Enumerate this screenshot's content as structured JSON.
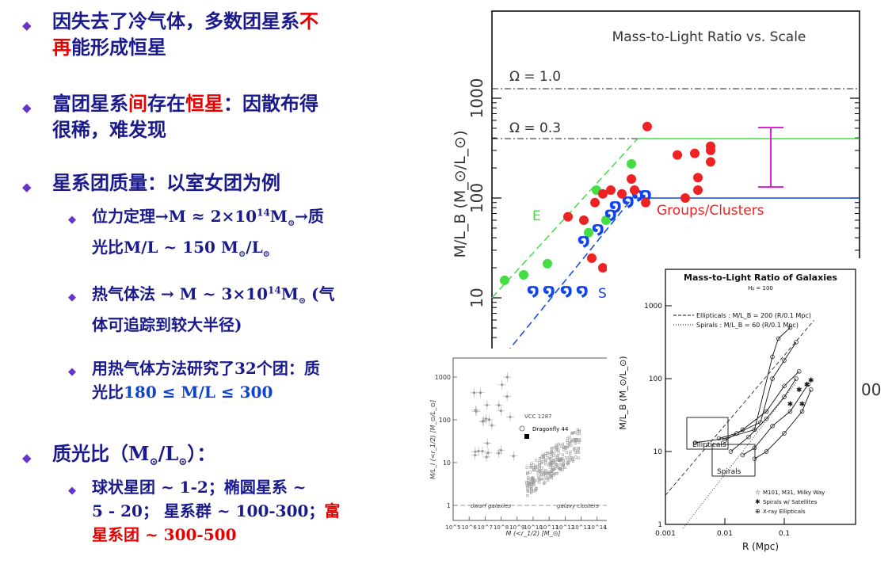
{
  "colors": {
    "text": "#1a1a8c",
    "highlight": "#e60000",
    "bullet": "#6633cc"
  },
  "bullets": {
    "b1": {
      "line1a": "因失去了冷气体，多数团星系",
      "line1b": "不",
      "line2a": "再",
      "line2b": "能形成恒星"
    },
    "b2": {
      "p1": "富团星系",
      "p2": "间",
      "p3": "存在",
      "p4": "恒星",
      "p5": "：因散布得",
      "line2": "很稀，难发现"
    },
    "b3": {
      "text": "星系团质量：以室女团为例"
    },
    "b3a": {
      "line1a": "位力定理→M ≈ 2×10",
      "exp": "14",
      "line1b": "M",
      "sun1": "⊙",
      "line1c": "→质",
      "line2a": "光比M/L ~ 150 M",
      "line2b": "/L"
    },
    "b3b": {
      "line1a": "热气体法 → M ~ 3×10",
      "exp": "14",
      "line1b": "M",
      "line1c": " (气",
      "line2": "体可追踪到较大半径)"
    },
    "b3c": {
      "line1": "用热气体方法研究了32个团：质",
      "line2a": "光比",
      "line2b": "180 ≤ M/L ≤ 300"
    },
    "b4": {
      "text1": "质光比（M",
      "text2": "/L",
      "text3": "）："
    },
    "b4a": {
      "line1": "球状星团 ~ 1-2；椭圆星系 ~",
      "line2": "5 - 20； 星系群 ~ 100-300；",
      "line2red": "富",
      "line3": "星系团 ~ 300-500"
    }
  },
  "chart_data": [
    {
      "type": "scatter",
      "title": "Mass-to-Light Ratio vs. Scale",
      "ylabel": "M/L_B (M_⊙/L_⊙)",
      "yscale": "log",
      "ylim": [
        5,
        2000
      ],
      "ytick_labels": [
        "10",
        "100",
        "1000"
      ],
      "annotations": [
        "Ω = 1.0",
        "Ω = 0.3",
        "E",
        "Sp",
        "Groups/Clusters"
      ],
      "x_tick_partial": "00",
      "colors": {
        "E": "#44dd44",
        "Sp": "#1144ee",
        "Clusters": "#ee2222",
        "errorbar": "#dd22dd"
      },
      "series": [
        {
          "name": "E",
          "values": [
            15,
            17,
            22,
            45,
            60,
            120,
            220
          ]
        },
        {
          "name": "Sp",
          "values": [
            12,
            12,
            12,
            12,
            38,
            50,
            70,
            85,
            95,
            110,
            110
          ]
        },
        {
          "name": "Groups/Clusters",
          "values": [
            65,
            60,
            90,
            110,
            120,
            110,
            155,
            120,
            90,
            25,
            20,
            520,
            270,
            280,
            300,
            330,
            230,
            160,
            120,
            100
          ]
        }
      ]
    },
    {
      "type": "scatter",
      "xlabel": "M (<r_1/2) [M_⊙]",
      "ylabel": "M/L_I (<r_1/2) [M_⊙/L_⊙]",
      "xscale": "log",
      "yscale": "log",
      "x_tick_labels": [
        "10^5",
        "10^6",
        "10^7",
        "10^8",
        "10^9",
        "10^10",
        "10^11",
        "10^12",
        "10^13",
        "10^14",
        "10^15"
      ],
      "y_tick_labels": [
        "1",
        "10",
        "100",
        "1000"
      ],
      "annotations": [
        "VCC 1287",
        "Dragonfly 44",
        "dwarf galaxies",
        "galaxy clusters"
      ],
      "highlight": {
        "name": "Dragonfly 44",
        "x": 70000000000.0,
        "y": 48
      }
    },
    {
      "type": "scatter",
      "title": "Mass-to-Light Ratio of Galaxies",
      "subtitle": "H₀ = 100",
      "xlabel": "R (Mpc)",
      "ylabel": "M/L_B (M_⊙/L_⊙)",
      "xscale": "log",
      "yscale": "log",
      "x_tick_labels": [
        "0.001",
        "0.01",
        "0.1"
      ],
      "y_tick_labels": [
        "1",
        "10",
        "100",
        "1000"
      ],
      "legend_top": [
        "Ellipticals : M/L_B = 200 (R/0.1 Mpc)",
        "Spirals   : M/L_B = 60 (R/0.1 Mpc)"
      ],
      "legend_bottom": [
        "M101, M31, Milky Way",
        "Spirals w/ Satellites",
        "X-ray Ellipticals"
      ],
      "box_labels": [
        "Ellipticals",
        "Spirals"
      ]
    }
  ]
}
